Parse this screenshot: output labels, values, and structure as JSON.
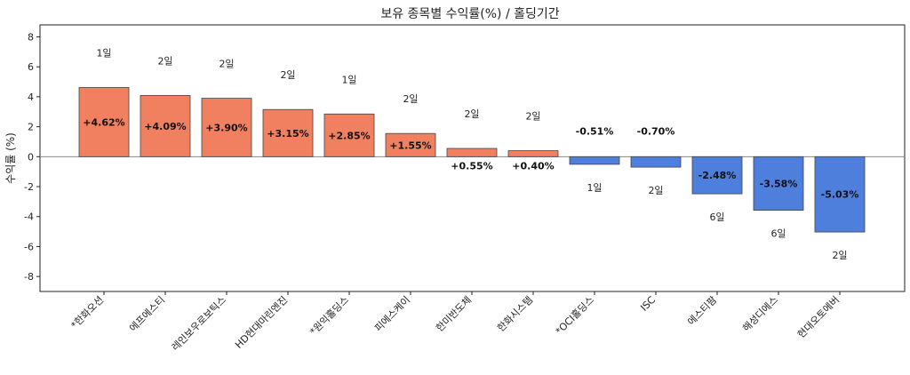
{
  "chart_data": {
    "type": "bar",
    "title": "보유 종목별 수익률(%) / 홀딩기간",
    "xlabel": "",
    "ylabel": "수익률 (%)",
    "ylim": [
      -9,
      8.8
    ],
    "yticks": [
      -8,
      -6,
      -4,
      -2,
      0,
      2,
      4,
      6,
      8
    ],
    "grid": false,
    "categories": [
      "*한화오션",
      "에프에스티",
      "레인보우로보틱스",
      "HD현대마린엔진",
      "*원익홀딩스",
      "피에스케이",
      "한미반도체",
      "한화시스템",
      "*OCI홀딩스",
      "ISC",
      "에스티팜",
      "해성디에스",
      "현대오토에버"
    ],
    "values": [
      4.62,
      4.09,
      3.9,
      3.15,
      2.85,
      1.55,
      0.55,
      0.4,
      -0.51,
      -0.7,
      -2.48,
      -3.58,
      -5.03
    ],
    "value_labels": [
      "+4.62%",
      "+4.09%",
      "+3.90%",
      "+3.15%",
      "+2.85%",
      "+1.55%",
      "+0.55%",
      "+0.40%",
      "-0.51%",
      "-0.70%",
      "-2.48%",
      "-3.58%",
      "-5.03%"
    ],
    "holding_labels": [
      "1일",
      "2일",
      "2일",
      "2일",
      "1일",
      "2일",
      "2일",
      "2일",
      "1일",
      "2일",
      "6일",
      "6일",
      "2일"
    ],
    "colors": {
      "positive": "#F08060",
      "negative": "#4F7FDD",
      "edge": "#444444",
      "zero_line": "#888888"
    }
  }
}
